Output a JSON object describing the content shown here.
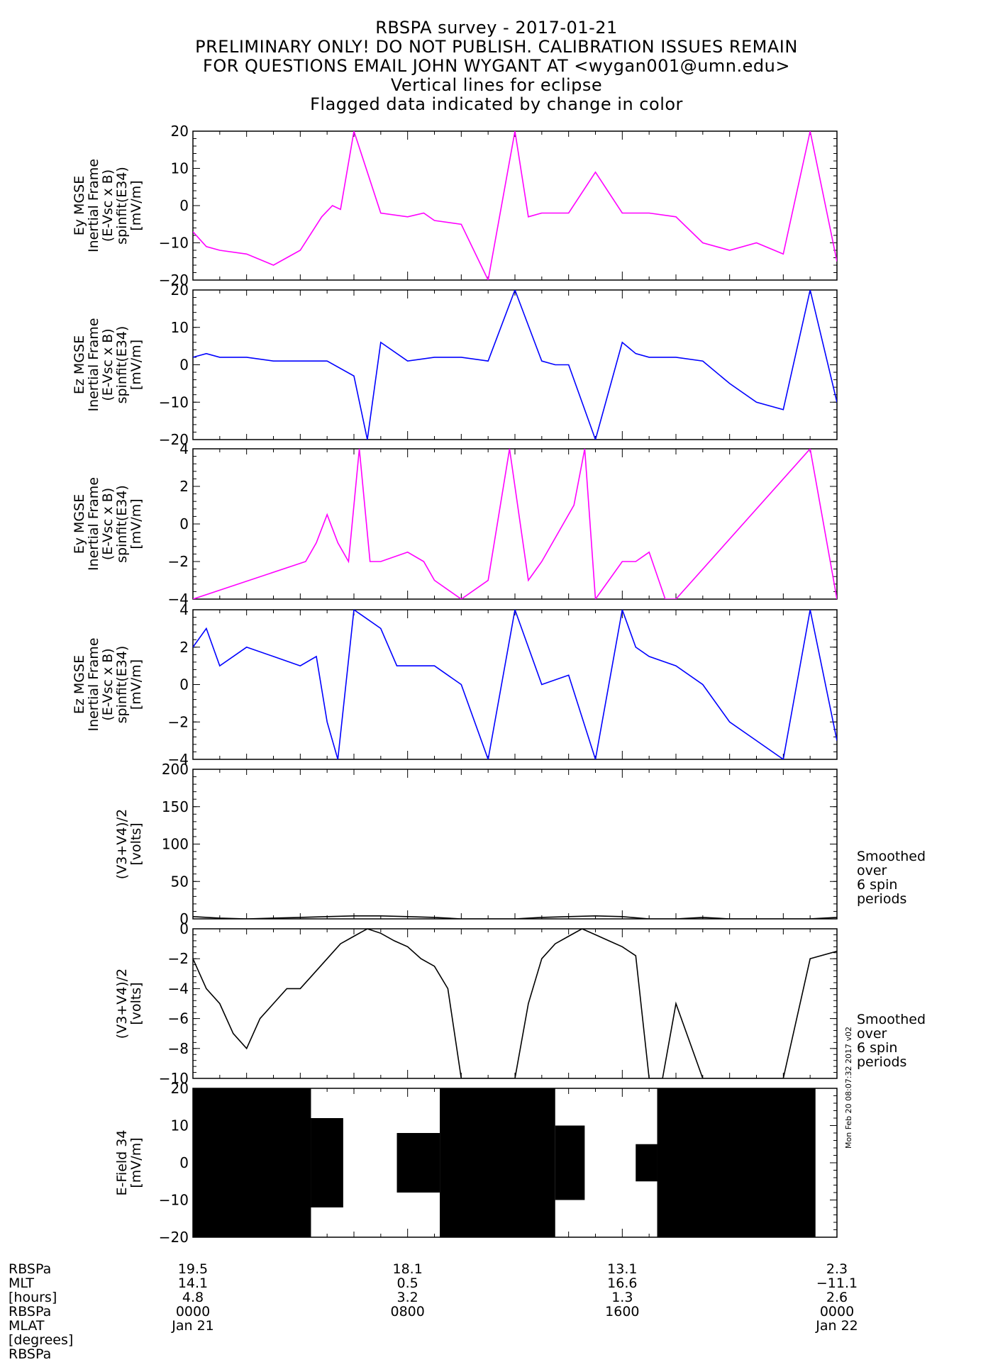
{
  "header": {
    "title": "RBSPA survey - 2017-01-21",
    "lines": [
      "PRELIMINARY ONLY! DO NOT PUBLISH. CALIBRATION ISSUES REMAIN",
      "FOR QUESTIONS EMAIL JOHN WYGANT AT <wygan001@umn.edu>",
      "Vertical lines for eclipse",
      "Flagged data indicated by change in color"
    ]
  },
  "colors": {
    "magenta": "#ff00ff",
    "blue": "#0000ff",
    "black": "#000000"
  },
  "side_note_lines": [
    "Smoothed",
    "over",
    "6 spin",
    "periods"
  ],
  "stamp": "Mon Feb 20 08:07:32 2017 v02",
  "footer": {
    "row_labels": [
      "RBSPa",
      "MLT",
      "[hours]",
      "RBSPa",
      "MLAT",
      "[degrees]",
      "RBSPa"
    ],
    "columns": [
      {
        "values": [
          "19.5",
          "14.1",
          "4.8",
          "0000",
          "Jan 21"
        ]
      },
      {
        "values": [
          "18.1",
          "0.5",
          "3.2",
          "0800",
          ""
        ]
      },
      {
        "values": [
          "13.1",
          "16.6",
          "1.3",
          "1600",
          ""
        ]
      },
      {
        "values": [
          "2.3",
          "-11.1",
          "2.6",
          "0000",
          "Jan 22"
        ]
      }
    ]
  },
  "chart_data": [
    {
      "type": "line",
      "ylabel_lines": [
        "Ey MGSE",
        "Inertial Frame",
        "(E-Vsc x B)",
        "spinfit(E34)",
        "[mV/m]"
      ],
      "ylim": [
        -20,
        20
      ],
      "yticks": [
        20,
        10,
        0,
        -10,
        -20
      ],
      "color": "#ff00ff",
      "x_hours": [
        0,
        0.5,
        1,
        2,
        3,
        4,
        4.8,
        5.2,
        5.5,
        6,
        7,
        8,
        8.6,
        9,
        10,
        11,
        12,
        12.5,
        13,
        14,
        15,
        16,
        17,
        18,
        19,
        20,
        21,
        22,
        23,
        24
      ],
      "y": [
        -7,
        -11,
        -12,
        -13,
        -16,
        -12,
        -3,
        0,
        -1,
        20,
        -2,
        -3,
        -2,
        -4,
        -5,
        -20,
        20,
        -3,
        -2,
        -2,
        9,
        -2,
        -2,
        -3,
        -10,
        -12,
        -10,
        -13,
        20,
        -15
      ]
    },
    {
      "type": "line",
      "ylabel_lines": [
        "Ez MGSE",
        "Inertial Frame",
        "(E-Vsc x B)",
        "spinfit(E34)",
        "[mV/m]"
      ],
      "ylim": [
        -20,
        20
      ],
      "yticks": [
        20,
        10,
        0,
        -10,
        -20
      ],
      "color": "#0000ff",
      "x_hours": [
        0,
        0.5,
        1,
        2,
        3,
        4,
        5,
        6,
        6.5,
        7,
        8,
        9,
        10,
        11,
        12,
        13,
        13.5,
        14,
        15,
        16,
        16.5,
        17,
        18,
        19,
        20,
        21,
        22,
        23,
        24
      ],
      "y": [
        2,
        3,
        2,
        2,
        1,
        1,
        1,
        -3,
        -20,
        6,
        1,
        2,
        2,
        1,
        20,
        1,
        0,
        0,
        -20,
        6,
        3,
        2,
        2,
        1,
        -5,
        -10,
        -12,
        20,
        -10
      ]
    },
    {
      "type": "line",
      "ylabel_lines": [
        "Ey MGSE",
        "Inertial Frame",
        "(E-Vsc x B)",
        "spinfit(E34)",
        "[mV/m]"
      ],
      "ylim": [
        -4,
        4
      ],
      "yticks": [
        4,
        2,
        0,
        -2,
        -4
      ],
      "color": "#ff00ff",
      "x_hours": [
        0,
        4.2,
        4.6,
        5,
        5.4,
        5.8,
        6.2,
        6.6,
        7,
        8,
        8.6,
        9,
        10,
        11,
        11.8,
        12.5,
        13,
        14.2,
        14.6,
        15,
        16,
        16.5,
        17,
        17.6,
        18,
        23,
        24
      ],
      "y": [
        -4,
        -2,
        -1,
        0.5,
        -1,
        -2,
        4,
        -2,
        -2,
        -1.5,
        -2,
        -3,
        -4,
        -3,
        4,
        -3,
        -2,
        1,
        4,
        -4,
        -2,
        -2,
        -1.5,
        -4,
        -4,
        4,
        -4
      ]
    },
    {
      "type": "line",
      "ylabel_lines": [
        "Ez MGSE",
        "Inertial Frame",
        "(E-Vsc x B)",
        "spinfit(E34)",
        "[mV/m]"
      ],
      "ylim": [
        -4,
        4
      ],
      "yticks": [
        4,
        2,
        0,
        -2,
        -4
      ],
      "color": "#0000ff",
      "x_hours": [
        0,
        0.5,
        1,
        2,
        3,
        4,
        4.6,
        5,
        5.4,
        6,
        7,
        7.6,
        8,
        9,
        10,
        11,
        12,
        13,
        14,
        15,
        16,
        16.5,
        17,
        18,
        19,
        20,
        21,
        22,
        23,
        24
      ],
      "y": [
        2,
        3,
        1,
        2,
        1.5,
        1,
        1.5,
        -2,
        -4,
        4,
        3,
        1,
        1,
        1,
        0,
        -4,
        4,
        0,
        0.5,
        -4,
        4,
        2,
        1.5,
        1,
        0,
        -2,
        -3,
        -4,
        4,
        -3
      ]
    },
    {
      "type": "line",
      "ylabel_lines": [
        "(V3+V4)/2",
        "[volts]"
      ],
      "ylim": [
        0,
        200
      ],
      "yticks": [
        200,
        150,
        100,
        50,
        0
      ],
      "color": "#000000",
      "x_hours": [
        0,
        1,
        2,
        3,
        4,
        5,
        6,
        7,
        8,
        9,
        10,
        11,
        12,
        13,
        14,
        15,
        16,
        17,
        18,
        19,
        20,
        21,
        22,
        23,
        24
      ],
      "y": [
        3,
        1,
        0,
        1,
        2,
        3,
        4,
        4,
        3,
        2,
        0,
        0,
        0,
        2,
        3,
        4,
        3,
        0,
        0,
        2,
        0,
        0,
        0,
        0,
        2
      ]
    },
    {
      "type": "line",
      "ylabel_lines": [
        "(V3+V4)/2",
        "[volts]"
      ],
      "ylim": [
        -10,
        0
      ],
      "yticks": [
        0,
        -2,
        -4,
        -6,
        -8,
        -10
      ],
      "color": "#000000",
      "x_hours": [
        0,
        0.5,
        1,
        1.5,
        2,
        2.5,
        3,
        3.5,
        4,
        4.5,
        5,
        5.5,
        6,
        6.5,
        7,
        7.5,
        8,
        8.5,
        9,
        9.5,
        10,
        11,
        12,
        12.5,
        13,
        13.5,
        14,
        14.5,
        15,
        15.5,
        16,
        16.5,
        17,
        17.5,
        18,
        19,
        22,
        23,
        24
      ],
      "y": [
        -2,
        -4,
        -5,
        -7,
        -8,
        -6,
        -5,
        -4,
        -4,
        -3,
        -2,
        -1,
        -0.5,
        0,
        -0.3,
        -0.8,
        -1.2,
        -2,
        -2.5,
        -4,
        -10,
        -10,
        -10,
        -5,
        -2,
        -1,
        -0.5,
        0,
        -0.4,
        -0.8,
        -1.2,
        -1.8,
        -10,
        -10,
        -5,
        -10,
        -10,
        -2,
        -1.5
      ]
    },
    {
      "type": "line",
      "ylabel_lines": [
        "E-Field 34",
        "[mV/m]"
      ],
      "ylim": [
        -20,
        20
      ],
      "yticks": [
        20,
        10,
        0,
        -10,
        -20
      ],
      "color": "#000000",
      "segments": [
        {
          "x_hours": [
            0,
            4.4
          ],
          "amp": 20
        },
        {
          "x_hours": [
            4.4,
            5.6
          ],
          "amp": 12
        },
        {
          "x_hours": [
            7.6,
            9.2
          ],
          "amp": 8
        },
        {
          "x_hours": [
            9.2,
            13.5
          ],
          "amp": 20
        },
        {
          "x_hours": [
            13.5,
            14.6
          ],
          "amp": 10
        },
        {
          "x_hours": [
            16.5,
            17.3
          ],
          "amp": 5
        },
        {
          "x_hours": [
            17.3,
            23.2
          ],
          "amp": 20
        }
      ]
    }
  ]
}
